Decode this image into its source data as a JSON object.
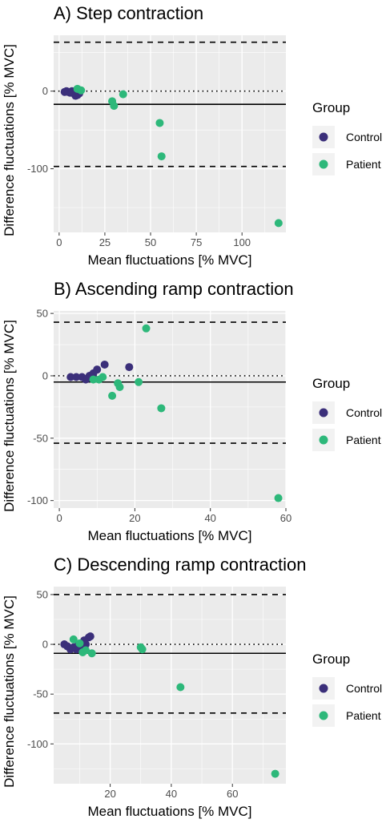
{
  "legend": {
    "title": "Group",
    "entries": [
      {
        "name": "Control",
        "color": "#3b2f7a"
      },
      {
        "name": "Patient",
        "color": "#2db87a"
      }
    ]
  },
  "chart_data": [
    {
      "type": "scatter",
      "title": "A) Step contraction",
      "xlabel": "Mean fluctuations [% MVC]",
      "ylabel": "Difference fluctuations [% MVC]",
      "xlim": [
        -3,
        124
      ],
      "ylim": [
        -182,
        72
      ],
      "xticks": [
        0,
        25,
        50,
        75,
        100
      ],
      "yticks": [
        0,
        -100
      ],
      "mean_line": -17,
      "limits": [
        63,
        -97
      ],
      "zero_line": 0,
      "legend_position": "right",
      "series": [
        {
          "name": "Control",
          "points": [
            [
              3,
              -1
            ],
            [
              4,
              0
            ],
            [
              5,
              -1
            ],
            [
              6,
              -2
            ],
            [
              7,
              0
            ],
            [
              8,
              -1
            ],
            [
              8,
              -3
            ],
            [
              9,
              -6
            ],
            [
              10,
              -5
            ],
            [
              11,
              -3
            ],
            [
              9,
              0
            ],
            [
              7,
              -2
            ]
          ]
        },
        {
          "name": "Patient",
          "points": [
            [
              10,
              3
            ],
            [
              12,
              1
            ],
            [
              29,
              -13
            ],
            [
              30,
              -19
            ],
            [
              35,
              -4
            ],
            [
              55,
              -41
            ],
            [
              56,
              -84
            ],
            [
              120,
              -170
            ]
          ]
        }
      ]
    },
    {
      "type": "scatter",
      "title": "B) Ascending ramp contraction",
      "xlabel": "Mean fluctuations [% MVC]",
      "ylabel": "Difference fluctuations [% MVC]",
      "xlim": [
        -1.5,
        60
      ],
      "ylim": [
        -106,
        52
      ],
      "xticks": [
        0,
        20,
        40,
        60
      ],
      "yticks": [
        50,
        0,
        -50,
        -100
      ],
      "mean_line": -5,
      "limits": [
        43,
        -54
      ],
      "zero_line": 0,
      "legend_position": "right",
      "series": [
        {
          "name": "Control",
          "points": [
            [
              3,
              -1
            ],
            [
              4.5,
              -1
            ],
            [
              6,
              -1
            ],
            [
              7,
              -3
            ],
            [
              8,
              0
            ],
            [
              9,
              2
            ],
            [
              10,
              5
            ],
            [
              12,
              9
            ],
            [
              18.5,
              7
            ],
            [
              8.5,
              -1
            ],
            [
              7.5,
              -2
            ]
          ]
        },
        {
          "name": "Patient",
          "points": [
            [
              9,
              -3
            ],
            [
              10.5,
              -3
            ],
            [
              11.5,
              -1
            ],
            [
              14,
              -16
            ],
            [
              15.5,
              -6
            ],
            [
              16,
              -9
            ],
            [
              21,
              -5
            ],
            [
              23,
              38
            ],
            [
              27,
              -26
            ],
            [
              58,
              -98
            ]
          ]
        }
      ]
    },
    {
      "type": "scatter",
      "title": "C) Descending ramp contraction",
      "xlabel": "Mean fluctuations [% MVC]",
      "ylabel": "Difference fluctuations [% MVC]",
      "xlim": [
        1.5,
        77.5
      ],
      "ylim": [
        -140,
        58
      ],
      "xticks": [
        20,
        40,
        60
      ],
      "yticks": [
        50,
        0,
        -50,
        -100
      ],
      "mean_line": -9,
      "limits": [
        50,
        -69
      ],
      "zero_line": 0,
      "legend_position": "right",
      "series": [
        {
          "name": "Control",
          "points": [
            [
              5,
              0
            ],
            [
              6,
              -2
            ],
            [
              7,
              -5
            ],
            [
              8,
              -3
            ],
            [
              9,
              -5
            ],
            [
              10,
              -4
            ],
            [
              11,
              -2
            ],
            [
              12,
              0
            ],
            [
              13,
              7
            ],
            [
              13.5,
              8
            ],
            [
              11.5,
              4
            ],
            [
              9.5,
              -1
            ]
          ]
        },
        {
          "name": "Patient",
          "points": [
            [
              8,
              5
            ],
            [
              10,
              1
            ],
            [
              11,
              -8
            ],
            [
              12,
              -6
            ],
            [
              14,
              -9
            ],
            [
              30,
              -3
            ],
            [
              30.5,
              -5
            ],
            [
              43,
              -43
            ],
            [
              74,
              -130
            ]
          ]
        }
      ]
    }
  ]
}
